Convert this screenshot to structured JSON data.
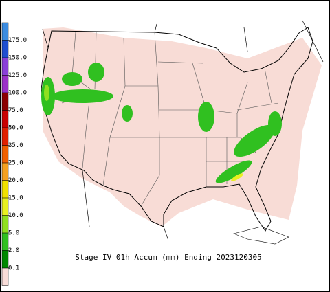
{
  "legend": {
    "labels": [
      "175.0",
      "150.0",
      "125.0",
      "100.0",
      "75.0",
      "50.0",
      "35.0",
      "25.0",
      "20.0",
      "15.0",
      "10.0",
      "5.0",
      "2.0",
      "0.1"
    ],
    "colors": [
      "#3c8ce0",
      "#1f4fd0",
      "#8a3fd8",
      "#9b30c8",
      "#8b0000",
      "#c80000",
      "#e02000",
      "#f06000",
      "#f4a020",
      "#f0e000",
      "#e8f020",
      "#90e020",
      "#30c020",
      "#008800",
      "#f8dcd8"
    ]
  },
  "caption": "Stage IV 01h Accum (mm) Ending 2023120305"
}
